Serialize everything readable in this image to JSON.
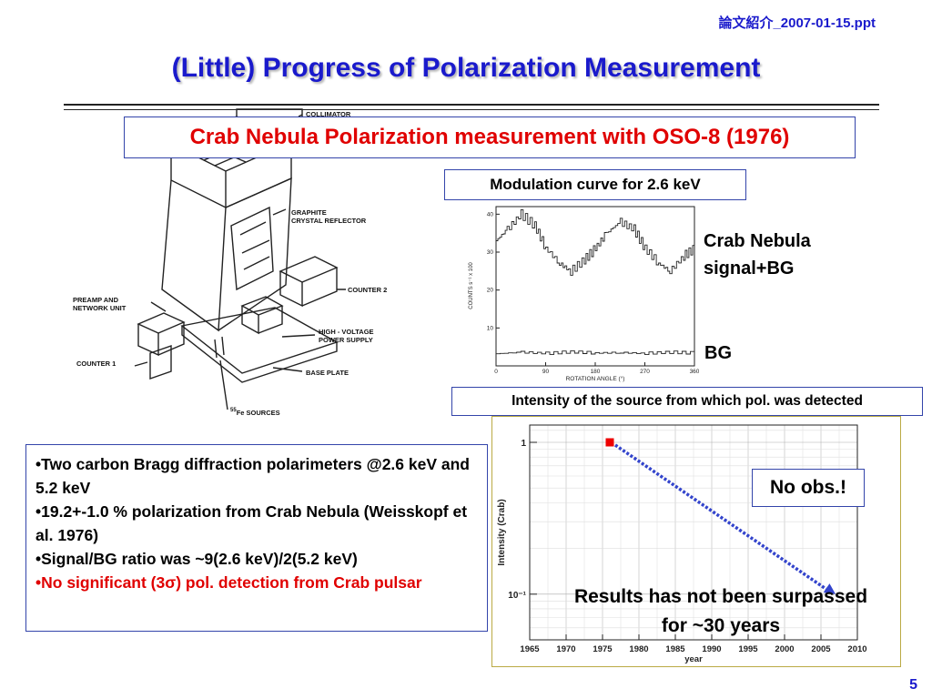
{
  "header": {
    "filename": "論文紹介_2007-01-15.ppt"
  },
  "slide": {
    "title": "(Little) Progress of Polarization Measurement",
    "subtitle": "Crab Nebula Polarization measurement with OSO-8 (1976)",
    "page_number": "5"
  },
  "instrument_diagram": {
    "labels": {
      "collimator": "COLLIMATOR",
      "reflector_1": "GRAPHITE",
      "reflector_2": "CRYSTAL REFLECTOR",
      "counter2": "COUNTER 2",
      "preamp_1": "PREAMP AND",
      "preamp_2": "NETWORK UNIT",
      "hv_1": "HIGH - VOLTAGE",
      "hv_2": "POWER SUPPLY",
      "counter1": "COUNTER 1",
      "baseplate": "BASE PLATE",
      "sources_sup": "55",
      "sources_el": "Fe",
      "sources_rest": " SOURCES"
    }
  },
  "modulation_panel": {
    "label": "Modulation curve for 2.6 keV",
    "signal_label_1": "Crab Nebula",
    "signal_label_2": "signal+BG",
    "bg_label": "BG",
    "chart_data": {
      "type": "line",
      "xlabel": "ROTATION ANGLE (°)",
      "ylabel": "COUNTS s⁻¹ x 100",
      "xlim": [
        0,
        360
      ],
      "ylim": [
        0,
        42
      ],
      "x_ticks": [
        "0",
        "90",
        "180",
        "270",
        "360"
      ],
      "y_ticks": [
        "10",
        "20",
        "30",
        "40"
      ],
      "series": [
        {
          "x": [
            0,
            20,
            45,
            70,
            90,
            115,
            135,
            160,
            180,
            200,
            225,
            250,
            270,
            295,
            315,
            340,
            360
          ],
          "values": [
            33,
            36,
            40,
            37,
            31,
            27,
            25,
            28,
            31,
            35,
            38,
            36,
            31,
            27,
            25,
            29,
            31
          ]
        },
        {
          "x": [
            0,
            45,
            90,
            135,
            180,
            225,
            270,
            315,
            360
          ],
          "values": [
            3.2,
            3.6,
            3.3,
            3.7,
            3.4,
            3.5,
            3.3,
            3.6,
            3.4
          ]
        }
      ]
    }
  },
  "intensity_panel": {
    "label": "Intensity of the source from which pol. was detected",
    "no_obs": "No obs.!",
    "results_line1": "Results has not been surpassed",
    "results_line2": "for ~30 years",
    "chart_data": {
      "type": "scatter",
      "xlabel": "year",
      "ylabel": "Intensity (Crab)",
      "xlim": [
        1965,
        2010
      ],
      "ylog": true,
      "ylim": [
        0.05,
        1.3
      ],
      "x_ticks": [
        "1965",
        "1970",
        "1975",
        "1980",
        "1985",
        "1990",
        "1995",
        "2000",
        "2005",
        "2010"
      ],
      "y_ticks": [
        "1",
        "10⁻¹"
      ],
      "point": {
        "x": 1976,
        "y": 1
      },
      "trend_arrow": {
        "x": [
          1976,
          2007
        ],
        "y": [
          1,
          0.1
        ],
        "color": "#3344cc"
      },
      "grid": true
    }
  },
  "bullets": [
    {
      "text": "•Two carbon Bragg diffraction polarimeters @2.6 keV and 5.2 keV",
      "color": "#000000"
    },
    {
      "text": "•19.2+-1.0 % polarization from Crab Nebula (Weisskopf et al. 1976)",
      "color": "#000000"
    },
    {
      "text": "•Signal/BG ratio was ~9(2.6 keV)/2(5.2 keV)",
      "color": "#000000"
    },
    {
      "text": "•No significant (3σ) pol. detection from Crab pulsar",
      "color": "#e00000"
    }
  ]
}
